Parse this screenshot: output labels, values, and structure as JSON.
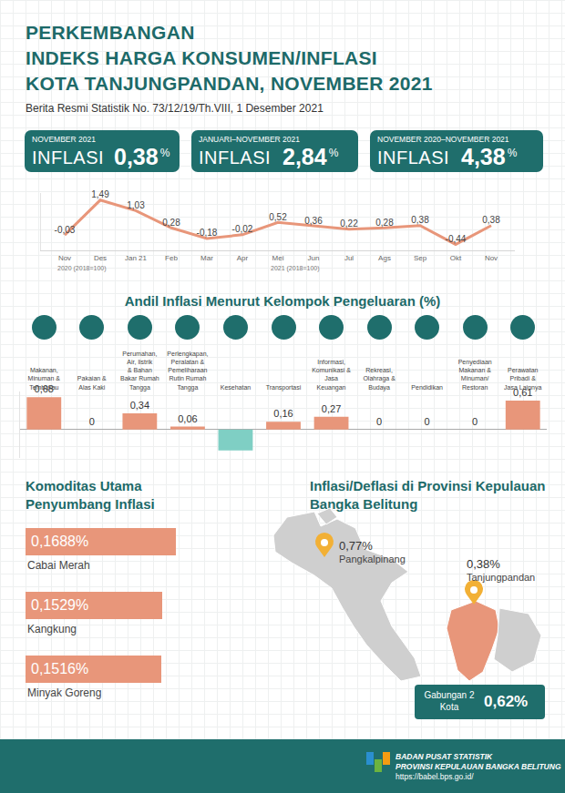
{
  "header": {
    "title_lines": [
      "PERKEMBANGAN",
      "INDEKS HARGA KONSUMEN/INFLASI",
      "KOTA TANJUNGPANDAN, NOVEMBER 2021"
    ],
    "subtitle": "Berita Resmi Statistik No. 73/12/19/Th.VIII, 1 Desember 2021"
  },
  "summary": [
    {
      "period": "NOVEMBER 2021",
      "label": "INFLASI",
      "value": "0,38",
      "unit": "%"
    },
    {
      "period": "JANUARI–NOVEMBER 2021",
      "label": "INFLASI",
      "value": "2,84",
      "unit": "%"
    },
    {
      "period": "NOVEMBER 2020–NOVEMBER 2021",
      "label": "INFLASI",
      "value": "4,38",
      "unit": "%"
    }
  ],
  "chart_data": [
    {
      "type": "line",
      "categories": [
        "Nov",
        "Des",
        "Jan 21",
        "Feb",
        "Mar",
        "Apr",
        "Mei",
        "Jun",
        "Jul",
        "Ags",
        "Sep",
        "Okt",
        "Nov"
      ],
      "values": [
        -0.03,
        1.49,
        1.03,
        0.28,
        -0.18,
        -0.02,
        0.52,
        0.36,
        0.22,
        0.28,
        0.38,
        -0.44,
        0.38
      ],
      "value_labels": [
        "-0,03",
        "1,49",
        "1,03",
        "0,28",
        "-0,18",
        "-0,02",
        "0,52",
        "0,36",
        "0,22",
        "0,28",
        "0,38",
        "-0,44",
        "0,38"
      ],
      "data_labels": true,
      "color": "#e8967a",
      "ylim": [
        -0.7,
        1.8
      ],
      "tick_labels": "x",
      "annotations": [
        {
          "text": "2020 (2018=100)",
          "category": "Nov"
        },
        {
          "text": "2021 (2018=100)",
          "category": "Mei"
        }
      ]
    },
    {
      "type": "bar",
      "title": "Andil Inflasi Menurut Kelompok Pengeluaran (%)",
      "categories": [
        "Makanan, Minuman & Tembakau",
        "Pakaian & Alas Kaki",
        "Perumahan, Air, listrik & Bahan Bakar Rumah Tangga",
        "Perlengkapan, Peralatan & Pemeliharaan Rutin Rumah Tangga",
        "Kesehatan",
        "Transportasi",
        "Informasi, Komunikasi & Jasa Keuangan",
        "Rekreasi, Olahraga & Budaya",
        "Pendidikan",
        "Penyediaan Makanan & Minuman/ Restoran",
        "Perawatan Pribadi & Jasa Lainnya"
      ],
      "values": [
        0.68,
        0,
        0.34,
        0.06,
        -0.44,
        0.16,
        0.27,
        0,
        0,
        0,
        0.61
      ],
      "value_labels": [
        "0,68",
        "0",
        "0,34",
        "0,06",
        null,
        "0,16",
        "0,27",
        "0",
        "0",
        "0",
        "0,61"
      ],
      "data_labels": true,
      "colors": [
        "#e8967a",
        "#e8967a",
        "#e8967a",
        "#e8967a",
        "#7fcfc4",
        "#e8967a",
        "#e8967a",
        "#e8967a",
        "#e8967a",
        "#e8967a",
        "#e8967a"
      ],
      "ylim": [
        -0.6,
        0.8
      ],
      "tick_labels": "x"
    }
  ],
  "commodities": {
    "title": "Komoditas Utama Penyumbang Inflasi",
    "items": [
      {
        "name": "Cabai Merah",
        "value": 0.1688,
        "value_label": "0,1688%"
      },
      {
        "name": "Kangkung",
        "value": 0.1529,
        "value_label": "0,1529%"
      },
      {
        "name": "Minyak Goreng",
        "value": 0.1516,
        "value_label": "0,1516%"
      }
    ]
  },
  "map": {
    "title": "Inflasi/Deflasi di Provinsi Kepulauan Bangka Belitung",
    "cities": [
      {
        "name": "Pangkalpinang",
        "value": "0,77%"
      },
      {
        "name": "Tanjungpandan",
        "value": "0,38%"
      }
    ],
    "combined": {
      "label": "Gabungan 2 Kota",
      "value": "0,62%"
    }
  },
  "footer": {
    "lines": [
      "BADAN PUSAT STATISTIK",
      "PROVINSI KEPULAUAN BANGKA BELITUNG",
      "https://babel.bps.go.id/"
    ]
  }
}
